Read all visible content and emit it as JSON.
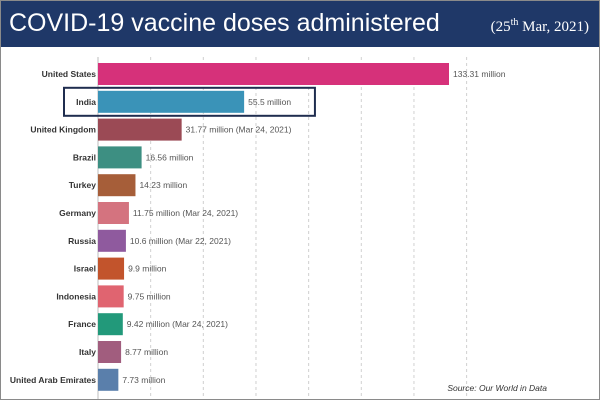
{
  "header": {
    "title": "COVID-19 vaccine doses administered",
    "date_open": "(25",
    "date_sup": "th",
    "date_close": " Mar, 2021)"
  },
  "source": "Source: Our World in Data",
  "colors": {
    "header_bg": "#1f3868",
    "highlight_border": "#1f2d4f"
  },
  "chart_data": {
    "type": "bar",
    "orientation": "horizontal",
    "title": "COVID-19 vaccine doses administered",
    "xlabel": "",
    "ylabel": "",
    "unit": "million",
    "xlim": [
      0,
      140
    ],
    "grid": true,
    "categories": [
      "United States",
      "India",
      "United Kingdom",
      "Brazil",
      "Turkey",
      "Germany",
      "Russia",
      "Israel",
      "Indonesia",
      "France",
      "Italy",
      "United Arab Emirates"
    ],
    "values": [
      133.31,
      55.5,
      31.77,
      16.56,
      14.23,
      11.75,
      10.6,
      9.9,
      9.75,
      9.42,
      8.77,
      7.73
    ],
    "labels": [
      "133.31 million",
      "55.5 million",
      "31.77 million (Mar 24, 2021)",
      "16.56 million",
      "14.23 million",
      "11.75 million (Mar 24, 2021)",
      "10.6 million (Mar 22, 2021)",
      "9.9 million",
      "9.75 million",
      "9.42 million (Mar 24, 2021)",
      "8.77 million",
      "7.73 million"
    ],
    "colors": [
      "#d6317a",
      "#3a93b8",
      "#9b4a55",
      "#3d8f82",
      "#a65e39",
      "#d4737f",
      "#8f5a9e",
      "#c2542c",
      "#e06470",
      "#22997a",
      "#a15d7e",
      "#5a7fab"
    ],
    "highlight": "India"
  }
}
